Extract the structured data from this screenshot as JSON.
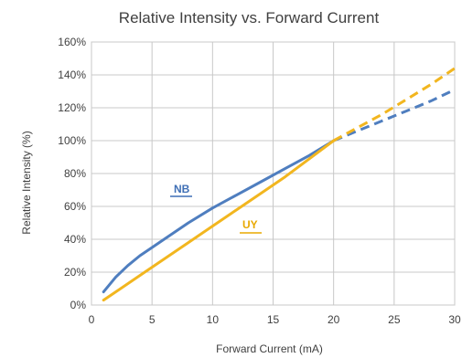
{
  "chart_data": {
    "type": "line",
    "title": "Relative Intensity vs. Forward Current",
    "xlabel": "Forward Current (mA)",
    "ylabel": "Relative Intensity (%)",
    "xlim": [
      0,
      30
    ],
    "ylim": [
      0,
      160
    ],
    "x_ticks": [
      0,
      5,
      10,
      15,
      20,
      25,
      30
    ],
    "y_ticks": [
      0,
      20,
      40,
      60,
      80,
      100,
      120,
      140,
      160
    ],
    "x_tick_labels": [
      "0",
      "5",
      "10",
      "15",
      "20",
      "25",
      "30"
    ],
    "y_tick_labels": [
      "0%",
      "20%",
      "40%",
      "60%",
      "80%",
      "100%",
      "120%",
      "140%",
      "160%"
    ],
    "grid": true,
    "series": [
      {
        "name": "NB",
        "color": "#4f7ebf",
        "label_color": "#3f6fb5",
        "solid": {
          "x": [
            1,
            2,
            3,
            4,
            5,
            6,
            8,
            10,
            12,
            14,
            16,
            18,
            20
          ],
          "y": [
            8,
            17,
            24,
            30,
            35,
            40,
            50,
            59,
            67,
            75,
            83,
            91,
            100
          ]
        },
        "dashed": {
          "x": [
            20,
            22,
            24,
            26,
            28,
            30
          ],
          "y": [
            100,
            106,
            112,
            118,
            124,
            131
          ]
        }
      },
      {
        "name": "UY",
        "color": "#f2b61f",
        "label_color": "#e8a800",
        "solid": {
          "x": [
            1,
            2,
            4,
            6,
            8,
            10,
            12,
            14,
            16,
            18,
            20
          ],
          "y": [
            3,
            8,
            18,
            28,
            38,
            48,
            58,
            68,
            78,
            89,
            100
          ]
        },
        "dashed": {
          "x": [
            20,
            22,
            24,
            26,
            28,
            30
          ],
          "y": [
            100,
            108,
            116,
            125,
            134,
            144
          ]
        }
      }
    ]
  }
}
